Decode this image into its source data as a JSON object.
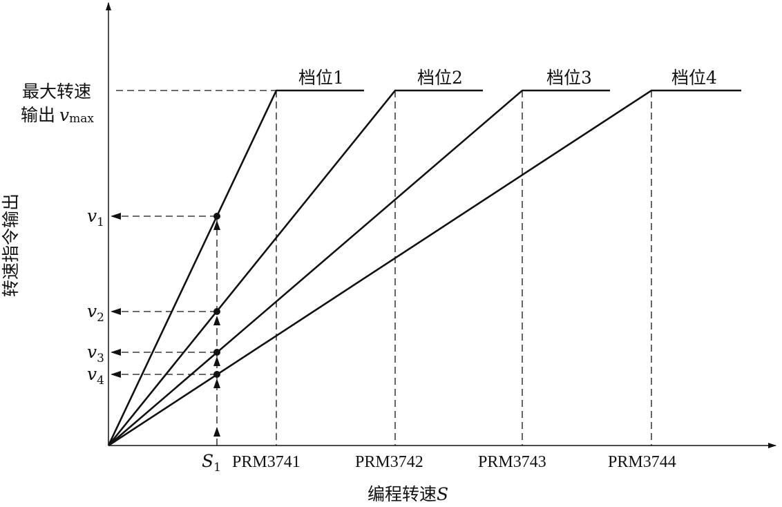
{
  "labels": {
    "y_axis": "转速指令输出",
    "x_axis_text": "编程转速",
    "x_axis_symbol": "S",
    "vmax_line1": "最大转速",
    "vmax_line2": "输出",
    "vmax_symbol": "v",
    "vmax_sub": "max",
    "s1_symbol": "S",
    "s1_sub": "1",
    "v_symbol": "v"
  },
  "gears": [
    {
      "name": "档位1",
      "param": "PRM3741",
      "v_sub": "1"
    },
    {
      "name": "档位2",
      "param": "PRM3742",
      "v_sub": "2"
    },
    {
      "name": "档位3",
      "param": "PRM3743",
      "v_sub": "3"
    },
    {
      "name": "档位4",
      "param": "PRM3744",
      "v_sub": "4"
    }
  ],
  "colors": {
    "line": "#111111"
  }
}
